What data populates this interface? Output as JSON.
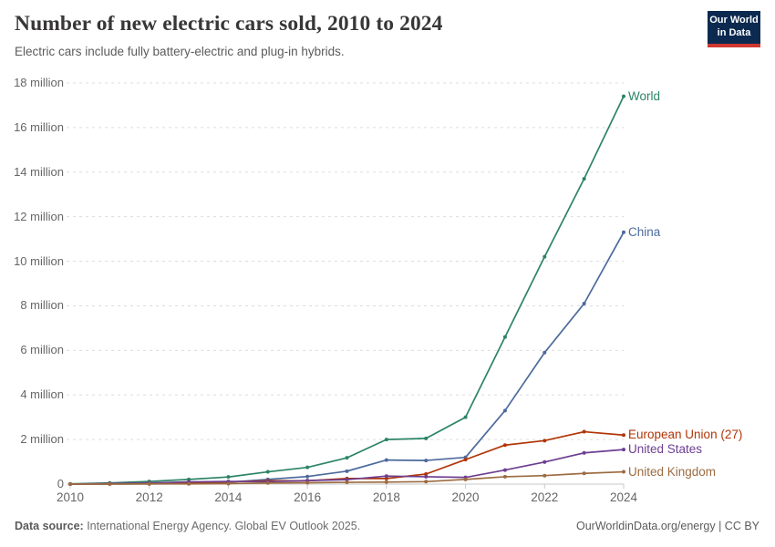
{
  "header": {
    "title": "Number of new electric cars sold, 2010 to 2024",
    "subtitle": "Electric cars include fully battery-electric and plug-in hybrids."
  },
  "logo": {
    "line1": "Our World",
    "line2": "in Data",
    "bg_color": "#0c2a50",
    "bar_color": "#cf3730"
  },
  "footer": {
    "source_label": "Data source:",
    "source_text": " International Energy Agency. Global EV Outlook 2025.",
    "right_text": "OurWorldinData.org/energy | CC BY"
  },
  "chart_data": {
    "type": "line",
    "title": "Number of new electric cars sold, 2010 to 2024",
    "unit": "million cars per year",
    "x": [
      2010,
      2011,
      2012,
      2013,
      2014,
      2015,
      2016,
      2017,
      2018,
      2019,
      2020,
      2021,
      2022,
      2023,
      2024
    ],
    "x_tick_labels": [
      "2010",
      "2012",
      "2014",
      "2016",
      "2018",
      "2020",
      "2022",
      "2024"
    ],
    "y_ticks": [
      {
        "value": 0,
        "label": "0"
      },
      {
        "value": 2,
        "label": "2 million"
      },
      {
        "value": 4,
        "label": "4 million"
      },
      {
        "value": 6,
        "label": "6 million"
      },
      {
        "value": 8,
        "label": "8 million"
      },
      {
        "value": 10,
        "label": "10 million"
      },
      {
        "value": 12,
        "label": "12 million"
      },
      {
        "value": 14,
        "label": "14 million"
      },
      {
        "value": 16,
        "label": "16 million"
      },
      {
        "value": 18,
        "label": "18 million"
      }
    ],
    "ylim": [
      0,
      18
    ],
    "grid": "dashed-horizontal",
    "legend_position": "line-end-labels-right",
    "series": [
      {
        "name": "World",
        "color": "#2c8465",
        "values": [
          0.01,
          0.05,
          0.12,
          0.21,
          0.32,
          0.55,
          0.75,
          1.18,
          2.0,
          2.05,
          3.0,
          6.6,
          10.2,
          13.7,
          17.4
        ]
      },
      {
        "name": "China",
        "color": "#4c6a9c",
        "values": [
          0.0,
          0.01,
          0.01,
          0.02,
          0.08,
          0.21,
          0.34,
          0.58,
          1.08,
          1.06,
          1.2,
          3.3,
          5.9,
          8.1,
          11.3
        ]
      },
      {
        "name": "European Union (27)",
        "color": "#b13507",
        "values": [
          0.0,
          0.01,
          0.03,
          0.07,
          0.1,
          0.15,
          0.15,
          0.25,
          0.25,
          0.45,
          1.1,
          1.75,
          1.95,
          2.35,
          2.2
        ]
      },
      {
        "name": "United States",
        "color": "#6d3e91",
        "values": [
          0.0,
          0.02,
          0.05,
          0.1,
          0.12,
          0.11,
          0.16,
          0.2,
          0.36,
          0.33,
          0.3,
          0.63,
          0.99,
          1.4,
          1.55
        ]
      },
      {
        "name": "United Kingdom",
        "color": "#9c6b40",
        "values": [
          0.0,
          0.0,
          0.01,
          0.01,
          0.02,
          0.05,
          0.06,
          0.08,
          0.09,
          0.11,
          0.21,
          0.33,
          0.38,
          0.48,
          0.55
        ]
      }
    ]
  }
}
